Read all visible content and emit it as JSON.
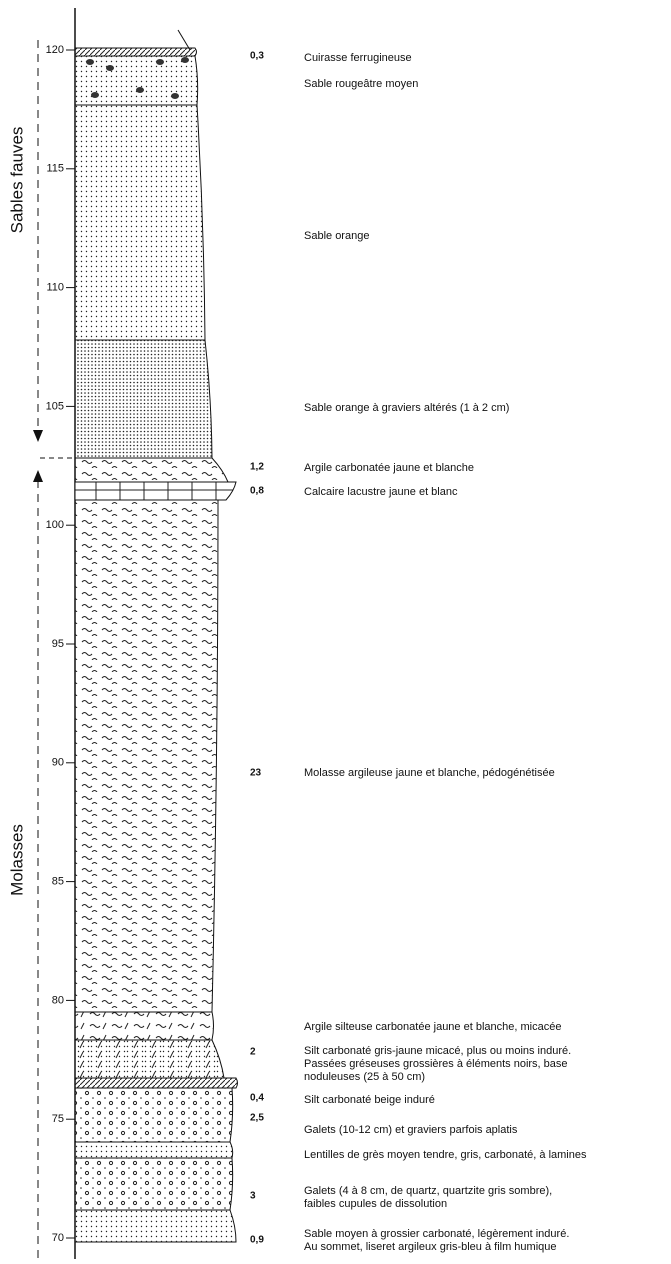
{
  "axis": {
    "ticks": [
      "120",
      "115",
      "110",
      "105",
      "100",
      "95",
      "90",
      "85",
      "80",
      "75",
      "70"
    ]
  },
  "groups": [
    "Sables fauves",
    "Molasses"
  ],
  "layers": [
    {
      "thickness": "0,3",
      "description": [
        "Cuirasse ferrugineuse"
      ]
    },
    {
      "description": [
        "Sable rougeâtre moyen"
      ]
    },
    {
      "description": [
        "Sable orange"
      ]
    },
    {
      "description": [
        "Sable orange à graviers altérés (1 à 2 cm)"
      ]
    },
    {
      "thickness": "1,2",
      "description": [
        "Argile carbonatée jaune et blanche"
      ]
    },
    {
      "thickness": "0,8",
      "description": [
        "Calcaire lacustre jaune et blanc"
      ]
    },
    {
      "thickness": "23",
      "description": [
        "Molasse argileuse jaune et blanche, pédogénétisée"
      ]
    },
    {
      "description": [
        "Argile silteuse carbonatée jaune et blanche, micacée"
      ]
    },
    {
      "thickness": "2",
      "description": [
        "Silt carbonaté gris-jaune micacé, plus ou moins induré.",
        "Passées gréseuses grossières à éléments noirs, base",
        "noduleuses (25 à 50 cm)"
      ]
    },
    {
      "thickness": "0,4",
      "description": [
        "Silt carbonaté beige induré"
      ]
    },
    {
      "thickness": "2,5",
      "description": [
        "Galets (10-12 cm) et graviers parfois aplatis"
      ]
    },
    {
      "description": [
        "Lentilles de grès moyen tendre, gris, carbonaté, à lamines"
      ]
    },
    {
      "thickness": "3",
      "description": [
        "Galets (4 à 8 cm, de quartz, quartzite gris sombre),",
        "faibles cupules de dissolution"
      ]
    },
    {
      "thickness": "0,9",
      "description": [
        "Sable moyen à grossier carbonaté, légèrement induré.",
        "Au sommet, liseret argileux gris-bleu à film humique"
      ]
    }
  ]
}
